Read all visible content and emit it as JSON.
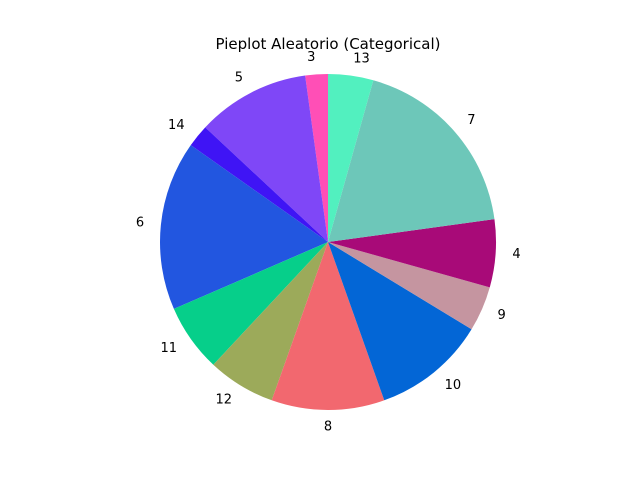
{
  "chart_data": {
    "type": "pie",
    "title": "Pieplot Aleatorio (Categorical)",
    "start_angle_deg": 90,
    "direction": "counterclockwise",
    "slices": [
      {
        "label": "3",
        "value": 2,
        "color": "#ff4fb6"
      },
      {
        "label": "5",
        "value": 10,
        "color": "#7f47f7"
      },
      {
        "label": "14",
        "value": 2,
        "color": "#3f14f5"
      },
      {
        "label": "6",
        "value": 15,
        "color": "#2256e0"
      },
      {
        "label": "11",
        "value": 6,
        "color": "#06cf8a"
      },
      {
        "label": "12",
        "value": 6,
        "color": "#9caa5a"
      },
      {
        "label": "8",
        "value": 10,
        "color": "#f2686f"
      },
      {
        "label": "10",
        "value": 10,
        "color": "#0366d6"
      },
      {
        "label": "9",
        "value": 4,
        "color": "#c595a0"
      },
      {
        "label": "4",
        "value": 6,
        "color": "#a80a78"
      },
      {
        "label": "7",
        "value": 17,
        "color": "#6dc7b9"
      },
      {
        "label": "13",
        "value": 4,
        "color": "#52f0bf"
      }
    ]
  }
}
